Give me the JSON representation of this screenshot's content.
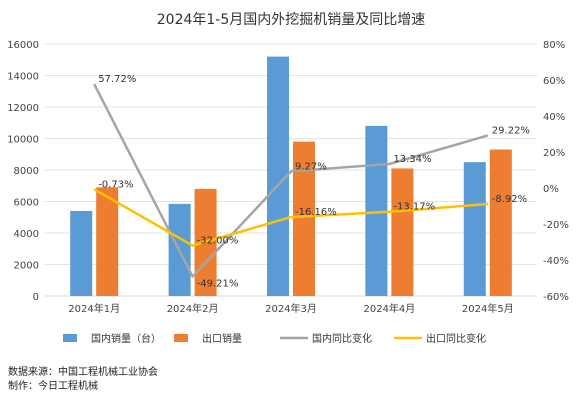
{
  "chart_data": {
    "type": "bar+line",
    "title": "2024年1-5月国内外挖掘机销量及同比增速",
    "categories": [
      "2024年1月",
      "2024年2月",
      "2024年3月",
      "2024年4月",
      "2024年5月"
    ],
    "series": [
      {
        "name": "国内销量（台）",
        "kind": "bar",
        "axis": "left",
        "color": "#5B9BD5",
        "values": [
          5400,
          5850,
          15200,
          10800,
          8500
        ]
      },
      {
        "name": "出口销量",
        "kind": "bar",
        "axis": "left",
        "color": "#ED7D31",
        "values": [
          6900,
          6800,
          9800,
          8100,
          9300
        ]
      },
      {
        "name": "国内同比变化",
        "kind": "line",
        "axis": "right",
        "color": "#A5A5A5",
        "values": [
          57.72,
          -49.21,
          9.27,
          13.34,
          29.22
        ],
        "labels": [
          "57.72%",
          "-49.21%",
          "9.27%",
          "13.34%",
          "29.22%"
        ]
      },
      {
        "name": "出口同比变化",
        "kind": "line",
        "axis": "right",
        "color": "#FFC000",
        "values": [
          -0.73,
          -32.0,
          -16.16,
          -13.17,
          -8.92
        ],
        "labels": [
          "-0.73%",
          "-32.00%",
          "-16.16%",
          "-13.17%",
          "-8.92%"
        ]
      }
    ],
    "y_left": {
      "min": 0,
      "max": 16000,
      "ticks": [
        "0",
        "2000",
        "4000",
        "6000",
        "8000",
        "10000",
        "12000",
        "14000",
        "16000"
      ]
    },
    "y_right": {
      "min": -60,
      "max": 80,
      "ticks": [
        "-60%",
        "-40%",
        "-20%",
        "0%",
        "20%",
        "40%",
        "60%",
        "80%"
      ]
    },
    "grid": true,
    "legend_position": "bottom"
  },
  "footer": {
    "source": "数据来源：中国工程机械工业协会",
    "maker": "制作：今日工程机械"
  }
}
